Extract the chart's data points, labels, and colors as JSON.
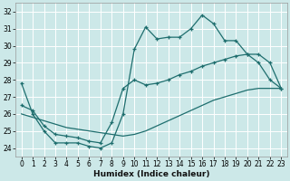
{
  "xlabel": "Humidex (Indice chaleur)",
  "xlim": [
    -0.5,
    23.5
  ],
  "ylim": [
    23.5,
    32.5
  ],
  "yticks": [
    24,
    25,
    26,
    27,
    28,
    29,
    30,
    31,
    32
  ],
  "xticks": [
    0,
    1,
    2,
    3,
    4,
    5,
    6,
    7,
    8,
    9,
    10,
    11,
    12,
    13,
    14,
    15,
    16,
    17,
    18,
    19,
    20,
    21,
    22,
    23
  ],
  "bg_color": "#cce8e8",
  "line_color": "#1e6e6e",
  "grid_color": "#ffffff",
  "line1_x": [
    0,
    1,
    2,
    3,
    4,
    5,
    6,
    7,
    8,
    9,
    10,
    11,
    12,
    13,
    14,
    15,
    16,
    17,
    18,
    19,
    20,
    21,
    22,
    23
  ],
  "line1_y": [
    27.8,
    26.0,
    25.0,
    24.3,
    24.3,
    24.3,
    24.1,
    24.0,
    24.3,
    26.0,
    29.8,
    31.1,
    30.4,
    30.5,
    30.5,
    31.0,
    31.8,
    31.3,
    30.3,
    30.3,
    29.5,
    29.0,
    28.0,
    27.5
  ],
  "line2_x": [
    0,
    1,
    2,
    3,
    4,
    5,
    6,
    7,
    8,
    9,
    10,
    11,
    12,
    13,
    14,
    15,
    16,
    17,
    18,
    19,
    20,
    21,
    22,
    23
  ],
  "line2_y": [
    26.5,
    26.2,
    25.3,
    24.8,
    24.7,
    24.6,
    24.4,
    24.3,
    25.5,
    27.5,
    28.0,
    27.7,
    27.8,
    28.0,
    28.3,
    28.5,
    28.8,
    29.0,
    29.2,
    29.4,
    29.5,
    29.5,
    29.0,
    27.5
  ],
  "line3_x": [
    0,
    1,
    2,
    3,
    4,
    5,
    6,
    7,
    8,
    9,
    10,
    11,
    12,
    13,
    14,
    15,
    16,
    17,
    18,
    19,
    20,
    21,
    22,
    23
  ],
  "line3_y": [
    26.0,
    25.8,
    25.6,
    25.4,
    25.2,
    25.1,
    25.0,
    24.9,
    24.8,
    24.7,
    24.8,
    25.0,
    25.3,
    25.6,
    25.9,
    26.2,
    26.5,
    26.8,
    27.0,
    27.2,
    27.4,
    27.5,
    27.5,
    27.5
  ]
}
